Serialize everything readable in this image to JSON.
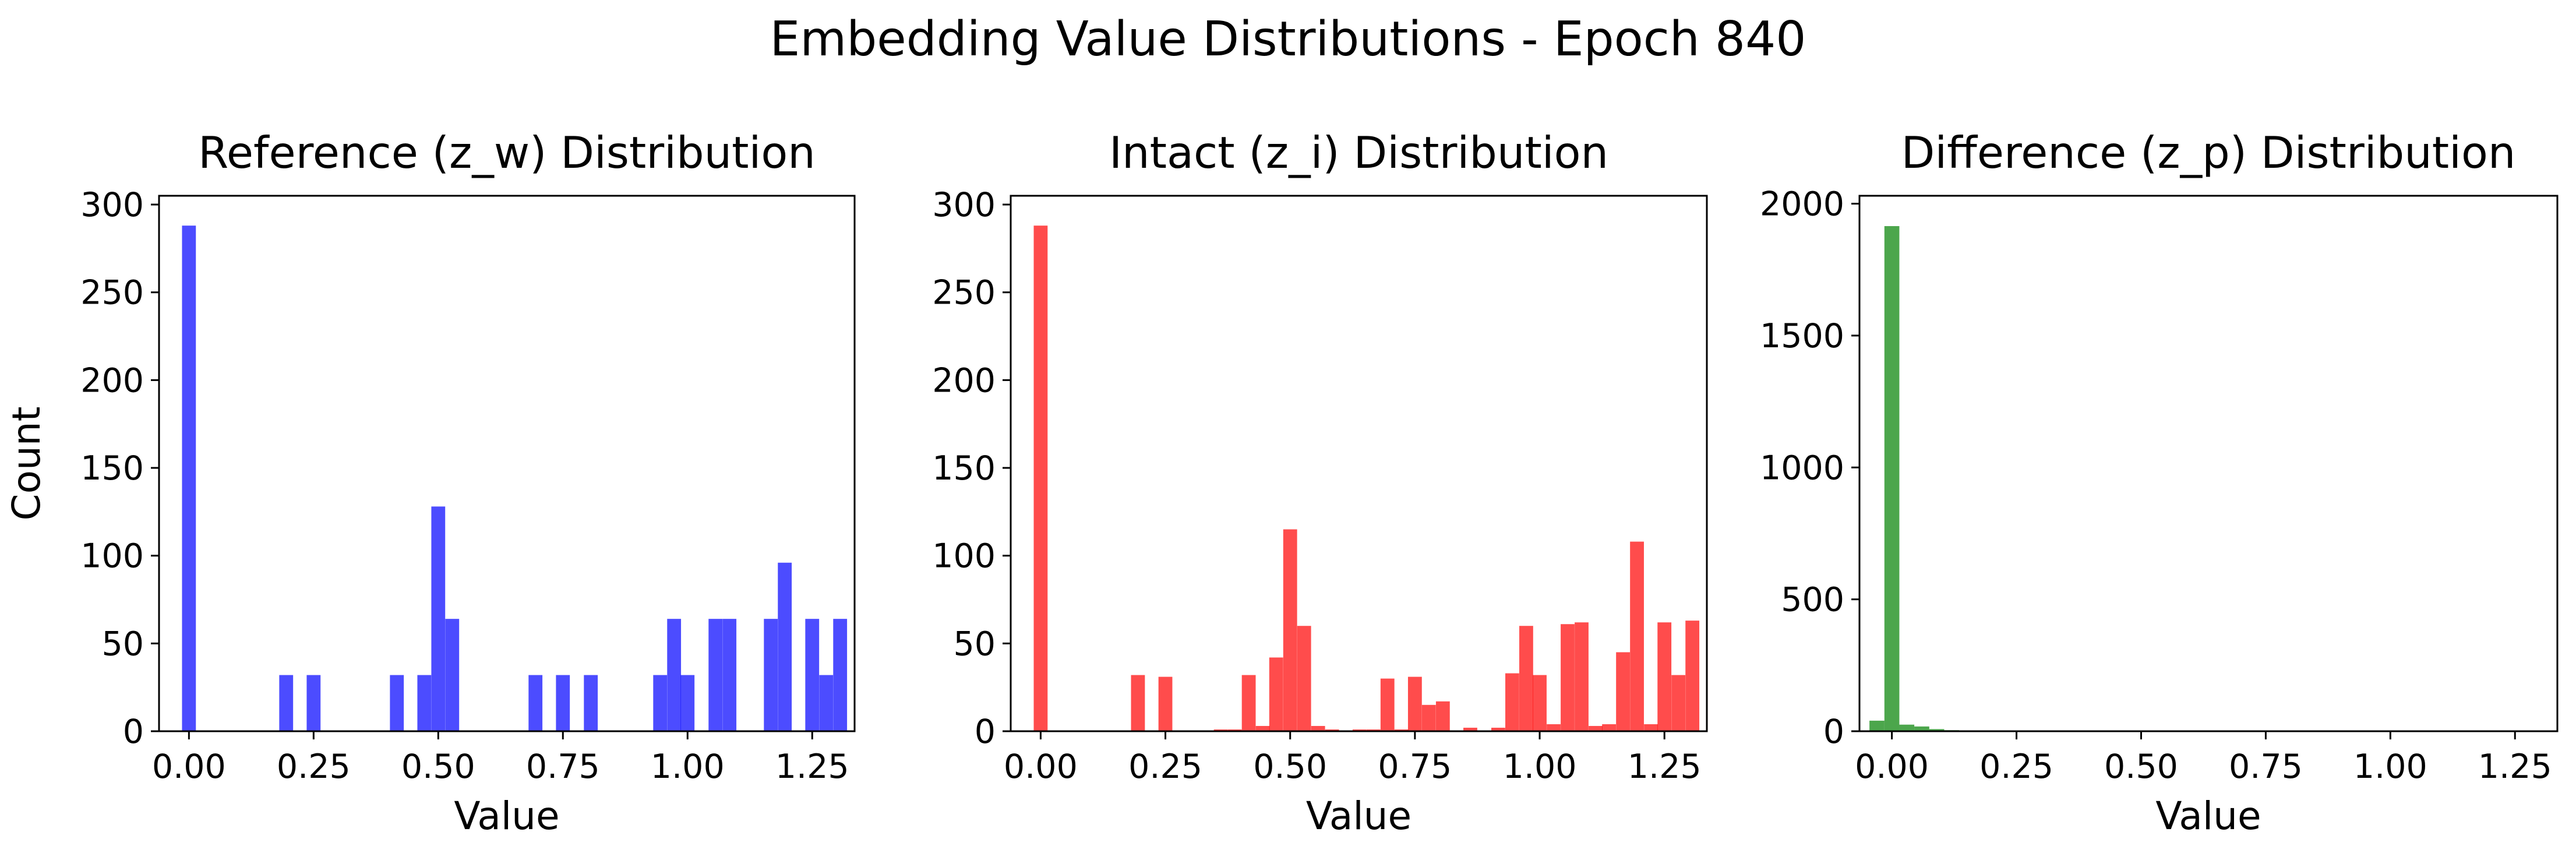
{
  "figure": {
    "title": "Embedding Value Distributions - Epoch 840"
  },
  "chart_data": [
    {
      "type": "bar",
      "title": "Reference (z_w) Distribution",
      "xlabel": "Value",
      "ylabel": "Count",
      "xlim": [
        -0.06,
        1.335
      ],
      "ylim": [
        0,
        305
      ],
      "xticks": [
        0.0,
        0.25,
        0.5,
        0.75,
        1.0,
        1.25
      ],
      "xtick_labels": [
        "0.00",
        "0.25",
        "0.50",
        "0.75",
        "1.00",
        "1.25"
      ],
      "yticks": [
        0,
        50,
        100,
        150,
        200,
        250,
        300
      ],
      "ytick_labels": [
        "0",
        "50",
        "100",
        "150",
        "200",
        "250",
        "300"
      ],
      "color": "#0000ff",
      "alpha": 0.7,
      "bin_width": 0.0278,
      "bins": [
        {
          "x": 0.0,
          "count": 288
        },
        {
          "x": 0.195,
          "count": 32
        },
        {
          "x": 0.25,
          "count": 32
        },
        {
          "x": 0.417,
          "count": 32
        },
        {
          "x": 0.472,
          "count": 32
        },
        {
          "x": 0.5,
          "count": 128
        },
        {
          "x": 0.528,
          "count": 64
        },
        {
          "x": 0.695,
          "count": 32
        },
        {
          "x": 0.75,
          "count": 32
        },
        {
          "x": 0.806,
          "count": 32
        },
        {
          "x": 0.945,
          "count": 32
        },
        {
          "x": 0.973,
          "count": 64
        },
        {
          "x": 1.0,
          "count": 32
        },
        {
          "x": 1.056,
          "count": 64
        },
        {
          "x": 1.084,
          "count": 64
        },
        {
          "x": 1.167,
          "count": 64
        },
        {
          "x": 1.195,
          "count": 96
        },
        {
          "x": 1.25,
          "count": 64
        },
        {
          "x": 1.278,
          "count": 32
        },
        {
          "x": 1.306,
          "count": 64
        }
      ]
    },
    {
      "type": "bar",
      "title": "Intact (z_i) Distribution",
      "xlabel": "Value",
      "ylabel": "",
      "xlim": [
        -0.06,
        1.335
      ],
      "ylim": [
        0,
        305
      ],
      "xticks": [
        0.0,
        0.25,
        0.5,
        0.75,
        1.0,
        1.25
      ],
      "xtick_labels": [
        "0.00",
        "0.25",
        "0.50",
        "0.75",
        "1.00",
        "1.25"
      ],
      "yticks": [
        0,
        50,
        100,
        150,
        200,
        250,
        300
      ],
      "ytick_labels": [
        "0",
        "50",
        "100",
        "150",
        "200",
        "250",
        "300"
      ],
      "color": "#ff0000",
      "alpha": 0.7,
      "bin_width": 0.0278,
      "bins": [
        {
          "x": 0.0,
          "count": 288
        },
        {
          "x": 0.195,
          "count": 32
        },
        {
          "x": 0.25,
          "count": 31
        },
        {
          "x": 0.361,
          "count": 1
        },
        {
          "x": 0.389,
          "count": 1
        },
        {
          "x": 0.417,
          "count": 32
        },
        {
          "x": 0.445,
          "count": 3
        },
        {
          "x": 0.472,
          "count": 42
        },
        {
          "x": 0.5,
          "count": 115
        },
        {
          "x": 0.528,
          "count": 60
        },
        {
          "x": 0.556,
          "count": 3
        },
        {
          "x": 0.584,
          "count": 1
        },
        {
          "x": 0.639,
          "count": 1
        },
        {
          "x": 0.667,
          "count": 1
        },
        {
          "x": 0.695,
          "count": 30
        },
        {
          "x": 0.723,
          "count": 1
        },
        {
          "x": 0.75,
          "count": 31
        },
        {
          "x": 0.778,
          "count": 15
        },
        {
          "x": 0.806,
          "count": 17
        },
        {
          "x": 0.861,
          "count": 2
        },
        {
          "x": 0.917,
          "count": 2
        },
        {
          "x": 0.945,
          "count": 33
        },
        {
          "x": 0.973,
          "count": 60
        },
        {
          "x": 1.0,
          "count": 32
        },
        {
          "x": 1.028,
          "count": 4
        },
        {
          "x": 1.056,
          "count": 61
        },
        {
          "x": 1.084,
          "count": 62
        },
        {
          "x": 1.112,
          "count": 3
        },
        {
          "x": 1.139,
          "count": 4
        },
        {
          "x": 1.167,
          "count": 45
        },
        {
          "x": 1.195,
          "count": 108
        },
        {
          "x": 1.223,
          "count": 4
        },
        {
          "x": 1.25,
          "count": 62
        },
        {
          "x": 1.278,
          "count": 32
        },
        {
          "x": 1.306,
          "count": 63
        }
      ]
    },
    {
      "type": "bar",
      "title": "Difference (z_p) Distribution",
      "xlabel": "Value",
      "ylabel": "",
      "xlim": [
        -0.065,
        1.335
      ],
      "ylim": [
        0,
        2030
      ],
      "xticks": [
        0.0,
        0.25,
        0.5,
        0.75,
        1.0,
        1.25
      ],
      "xtick_labels": [
        "0.00",
        "0.25",
        "0.50",
        "0.75",
        "1.00",
        "1.25"
      ],
      "yticks": [
        0,
        500,
        1000,
        1500,
        2000
      ],
      "ytick_labels": [
        "0",
        "500",
        "1000",
        "1500",
        "2000"
      ],
      "color": "#008000",
      "alpha": 0.7,
      "bin_width": 0.03,
      "bins": [
        {
          "x": -0.03,
          "count": 40
        },
        {
          "x": 0.0,
          "count": 1915
        },
        {
          "x": 0.03,
          "count": 25
        },
        {
          "x": 0.06,
          "count": 18
        },
        {
          "x": 0.09,
          "count": 8
        },
        {
          "x": 0.12,
          "count": 4
        },
        {
          "x": 0.15,
          "count": 2
        },
        {
          "x": 0.18,
          "count": 1
        },
        {
          "x": 0.21,
          "count": 1
        },
        {
          "x": 0.24,
          "count": 1
        }
      ]
    }
  ]
}
